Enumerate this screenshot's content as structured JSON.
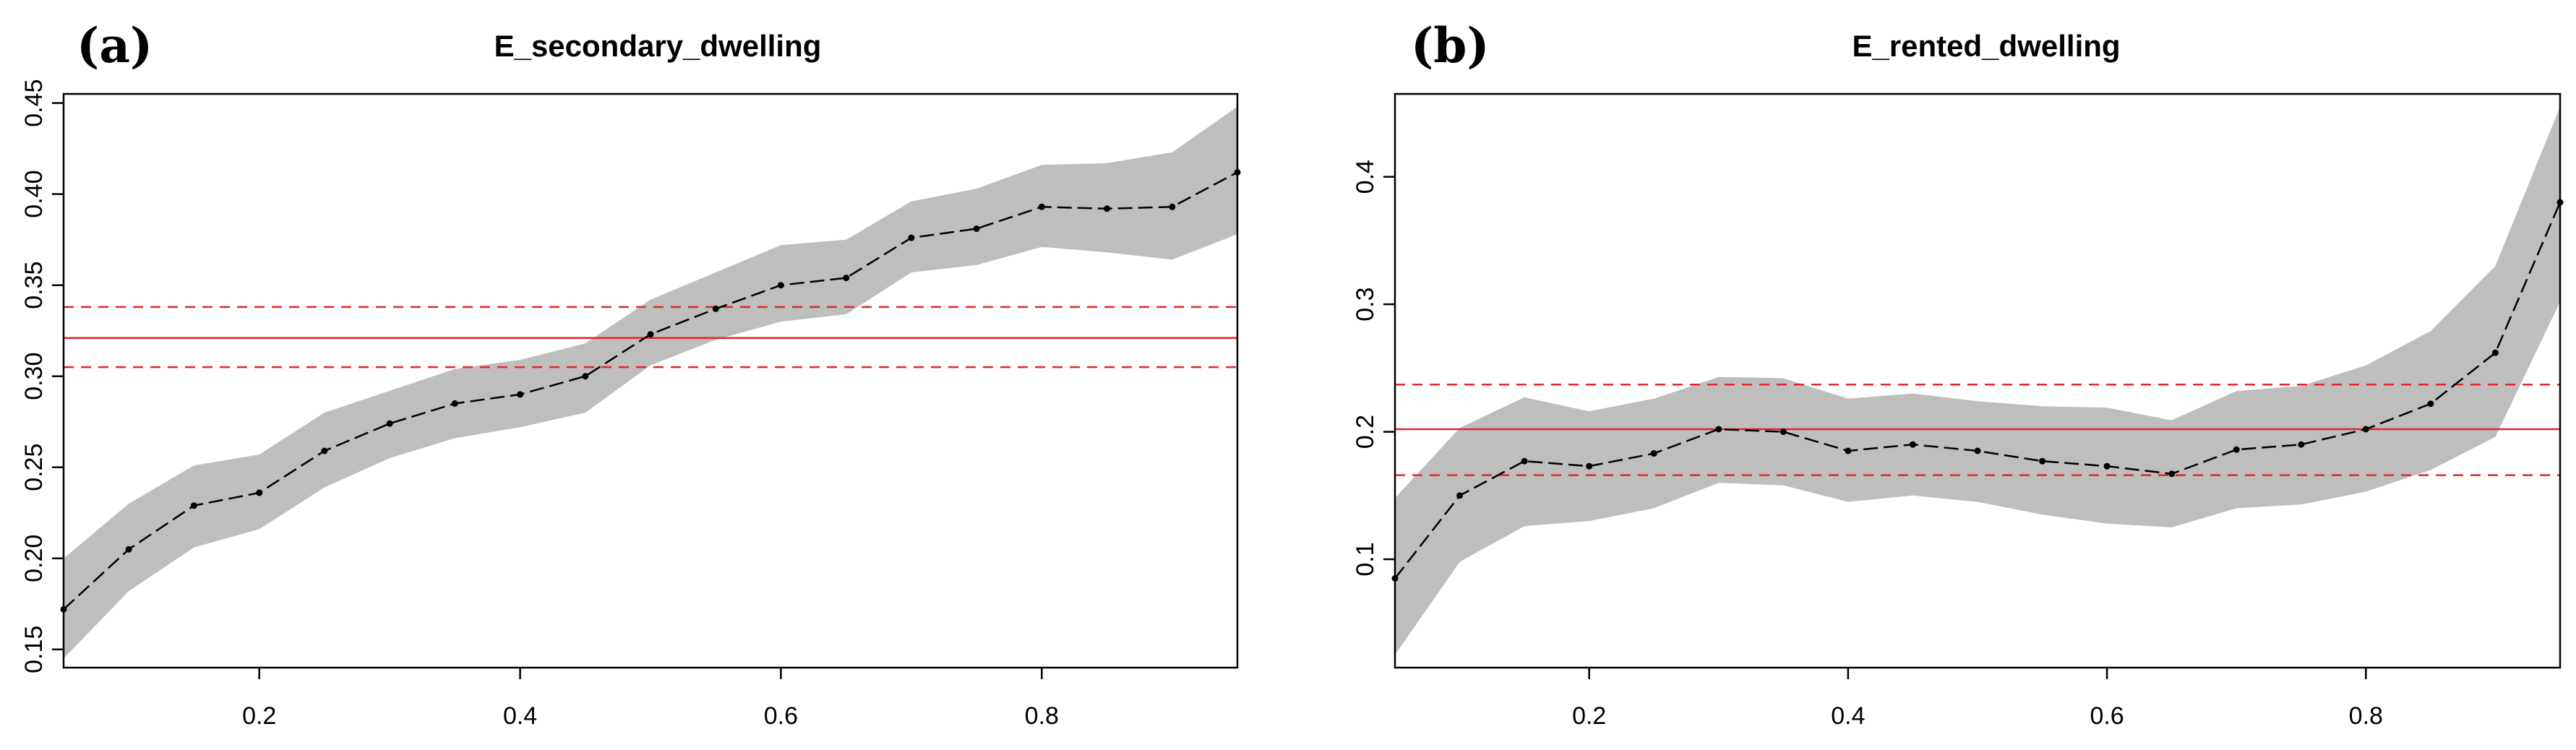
{
  "panel_letters": [
    "(a)",
    "(b)"
  ],
  "chart_data": [
    {
      "type": "line",
      "panel": "(a)",
      "title": "E_secondary_dwelling",
      "xlabel": "",
      "ylabel": "",
      "xlim": [
        0.05,
        0.95
      ],
      "ylim": [
        0.14,
        0.455
      ],
      "x_ticks": [
        0.2,
        0.4,
        0.6,
        0.8
      ],
      "x_tick_labels": [
        "0.2",
        "0.4",
        "0.6",
        "0.8"
      ],
      "y_ticks": [
        0.15,
        0.2,
        0.25,
        0.3,
        0.35,
        0.4,
        0.45
      ],
      "y_tick_labels": [
        "0.15",
        "0.20",
        "0.25",
        "0.30",
        "0.35",
        "0.40",
        "0.45"
      ],
      "x": [
        0.05,
        0.1,
        0.15,
        0.2,
        0.25,
        0.3,
        0.35,
        0.4,
        0.45,
        0.5,
        0.55,
        0.6,
        0.65,
        0.7,
        0.75,
        0.8,
        0.85,
        0.9,
        0.95
      ],
      "series": [
        {
          "name": "estimate",
          "values": [
            0.172,
            0.205,
            0.229,
            0.236,
            0.259,
            0.274,
            0.285,
            0.29,
            0.3,
            0.323,
            0.337,
            0.35,
            0.354,
            0.376,
            0.381,
            0.393,
            0.392,
            0.393,
            0.412
          ]
        },
        {
          "name": "band_lower",
          "values": [
            0.145,
            0.182,
            0.206,
            0.216,
            0.239,
            0.255,
            0.266,
            0.272,
            0.28,
            0.306,
            0.32,
            0.33,
            0.334,
            0.357,
            0.361,
            0.371,
            0.368,
            0.364,
            0.378
          ]
        },
        {
          "name": "band_upper",
          "values": [
            0.2,
            0.23,
            0.251,
            0.257,
            0.28,
            0.292,
            0.304,
            0.309,
            0.318,
            0.342,
            0.357,
            0.372,
            0.375,
            0.396,
            0.403,
            0.416,
            0.417,
            0.423,
            0.448
          ]
        }
      ],
      "reference_lines": [
        {
          "name": "mean",
          "value": 0.321,
          "style": "solid",
          "color": "#e8242b"
        },
        {
          "name": "lower",
          "value": 0.305,
          "style": "dashed",
          "color": "#e8242b"
        },
        {
          "name": "upper",
          "value": 0.338,
          "style": "dashed",
          "color": "#e8242b"
        }
      ],
      "colors": {
        "band": "#bebebe",
        "line": "#000000"
      }
    },
    {
      "type": "line",
      "panel": "(b)",
      "title": "E_rented_dwelling",
      "xlabel": "",
      "ylabel": "",
      "xlim": [
        0.05,
        0.95
      ],
      "ylim": [
        0.015,
        0.465
      ],
      "x_ticks": [
        0.2,
        0.4,
        0.6,
        0.8
      ],
      "x_tick_labels": [
        "0.2",
        "0.4",
        "0.6",
        "0.8"
      ],
      "y_ticks": [
        0.1,
        0.2,
        0.3,
        0.4
      ],
      "y_tick_labels": [
        "0.1",
        "0.2",
        "0.3",
        "0.4"
      ],
      "x": [
        0.05,
        0.1,
        0.15,
        0.2,
        0.25,
        0.3,
        0.35,
        0.4,
        0.45,
        0.5,
        0.55,
        0.6,
        0.65,
        0.7,
        0.75,
        0.8,
        0.85,
        0.9,
        0.95
      ],
      "series": [
        {
          "name": "estimate",
          "values": [
            0.085,
            0.15,
            0.177,
            0.173,
            0.183,
            0.202,
            0.2,
            0.185,
            0.19,
            0.185,
            0.177,
            0.173,
            0.167,
            0.186,
            0.19,
            0.202,
            0.222,
            0.262,
            0.38
          ]
        },
        {
          "name": "band_lower",
          "values": [
            0.025,
            0.098,
            0.126,
            0.13,
            0.14,
            0.16,
            0.158,
            0.145,
            0.15,
            0.145,
            0.135,
            0.128,
            0.125,
            0.14,
            0.143,
            0.153,
            0.17,
            0.196,
            0.302
          ]
        },
        {
          "name": "band_upper",
          "values": [
            0.148,
            0.203,
            0.227,
            0.216,
            0.226,
            0.243,
            0.242,
            0.226,
            0.23,
            0.224,
            0.22,
            0.219,
            0.209,
            0.232,
            0.236,
            0.252,
            0.279,
            0.33,
            0.455
          ]
        }
      ],
      "reference_lines": [
        {
          "name": "mean",
          "value": 0.202,
          "style": "solid",
          "color": "#e8242b"
        },
        {
          "name": "lower",
          "value": 0.166,
          "style": "dashed",
          "color": "#e8242b"
        },
        {
          "name": "upper",
          "value": 0.237,
          "style": "dashed",
          "color": "#e8242b"
        }
      ],
      "colors": {
        "band": "#bebebe",
        "line": "#000000"
      }
    }
  ]
}
